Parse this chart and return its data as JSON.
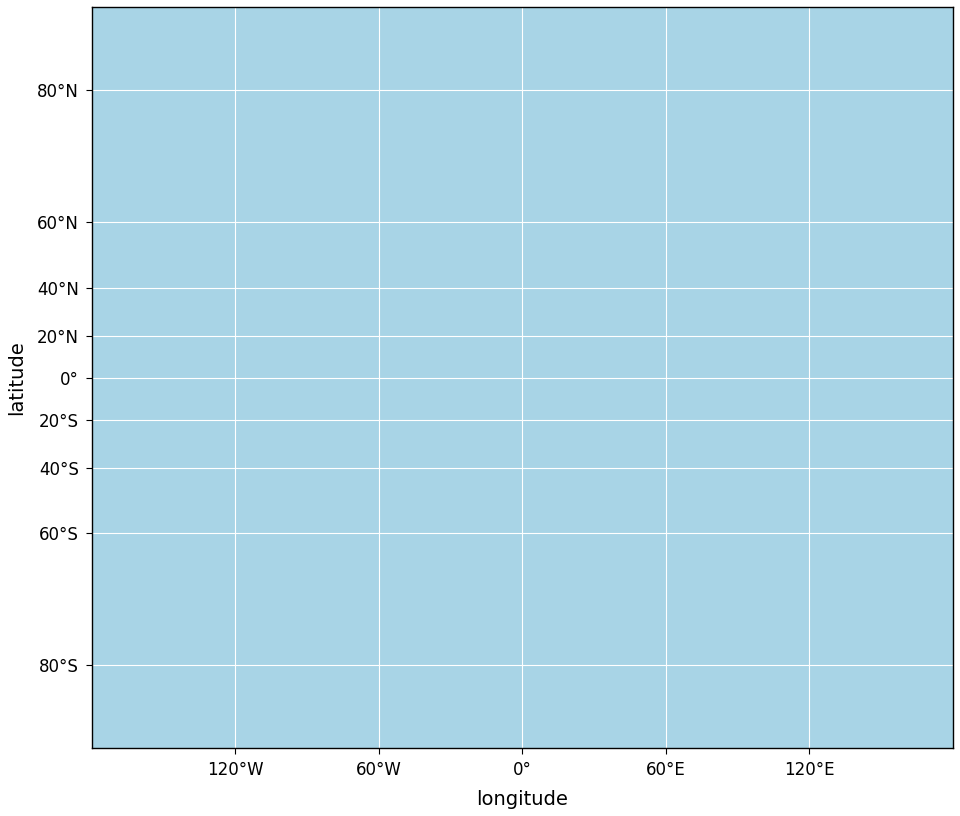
{
  "ocean_color": "#a8d4e6",
  "land_color": "#d4a84b",
  "border_color": "#1a1a00",
  "border_linewidth": 0.5,
  "grid_color": "#ffffff",
  "grid_linewidth": 0.8,
  "grid_alpha": 1.0,
  "background_color": "#ffffff",
  "xlabel": "longitude",
  "ylabel": "latitude",
  "xlabel_fontsize": 14,
  "ylabel_fontsize": 14,
  "xticks": [
    -120,
    -60,
    0,
    60,
    120
  ],
  "yticks": [
    80,
    60,
    40,
    20,
    0,
    -20,
    -40,
    -60,
    -80
  ],
  "xlim": [
    -180,
    180
  ],
  "ylim": [
    -85.051129,
    85.051129
  ],
  "tick_fontsize": 12,
  "figsize": [
    9.6,
    8.16
  ],
  "dpi": 100
}
